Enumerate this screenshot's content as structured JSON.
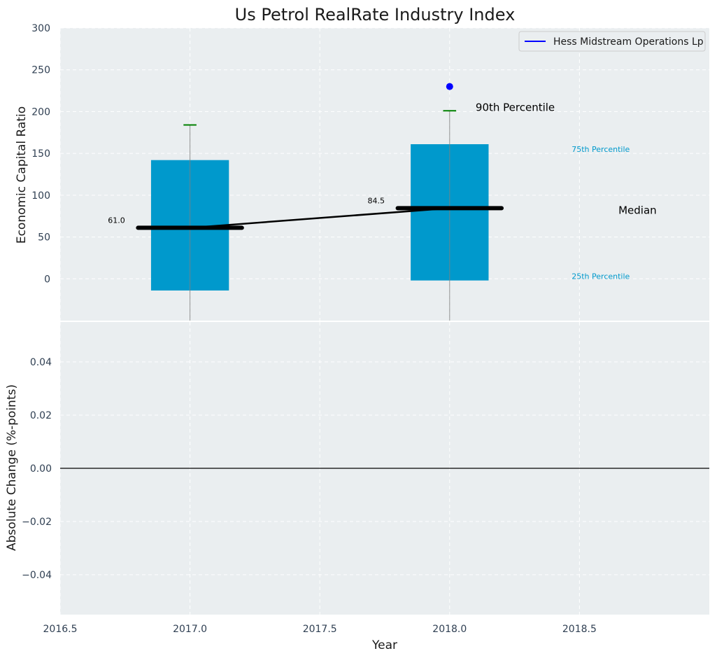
{
  "title": "Us Petrol RealRate Industry Index",
  "colors": {
    "panel_bg": "#eaeef0",
    "box": "#0099cc",
    "legend_line": "#0000ff",
    "whisker_cap": "#008000",
    "median": "#000000",
    "annotation_blue": "#0099cc"
  },
  "legend": {
    "label": "Hess Midstream Operations Lp"
  },
  "chart_data": [
    {
      "type": "box",
      "ylabel": "Economic Capital Ratio",
      "xlim": [
        2016.5,
        2019.0
      ],
      "ylim": [
        -50,
        300
      ],
      "yticks": [
        0,
        50,
        100,
        150,
        200,
        250,
        300
      ],
      "boxes": [
        {
          "x": 2017.0,
          "q1": -14,
          "median": 61.0,
          "q3": 142,
          "p90": 184,
          "median_label": "61.0"
        },
        {
          "x": 2018.0,
          "q1": -2,
          "median": 84.5,
          "q3": 161,
          "p90": 201,
          "median_label": "84.5"
        }
      ],
      "median_line": {
        "x": [
          2017.0,
          2018.0
        ],
        "y": [
          61.0,
          84.5
        ]
      },
      "company_points": [
        {
          "x": 2018.0,
          "y": 230
        }
      ],
      "annotations": {
        "p90": {
          "text": "90th Percentile",
          "x": 2018.1,
          "y": 205
        },
        "p75": {
          "text": "75th Percentile",
          "x": 2018.47,
          "y": 155
        },
        "median": {
          "text": "Median",
          "x": 2018.65,
          "y": 82
        },
        "p25": {
          "text": "25th Percentile",
          "x": 2018.47,
          "y": 3
        }
      }
    },
    {
      "type": "line",
      "ylabel": "Absolute Change (%-points)",
      "xlabel": "Year",
      "xlim": [
        2016.5,
        2019.0
      ],
      "ylim": [
        -0.055,
        0.055
      ],
      "xticks": [
        2016.5,
        2017.0,
        2017.5,
        2018.0,
        2018.5
      ],
      "xtick_labels": [
        "2016.5",
        "2017.0",
        "2017.5",
        "2018.0",
        "2018.5"
      ],
      "yticks": [
        -0.04,
        -0.02,
        0.0,
        0.02,
        0.04
      ],
      "ytick_labels": [
        "−0.04",
        "−0.02",
        "0.00",
        "0.02",
        "0.04"
      ],
      "hline": 0
    }
  ]
}
